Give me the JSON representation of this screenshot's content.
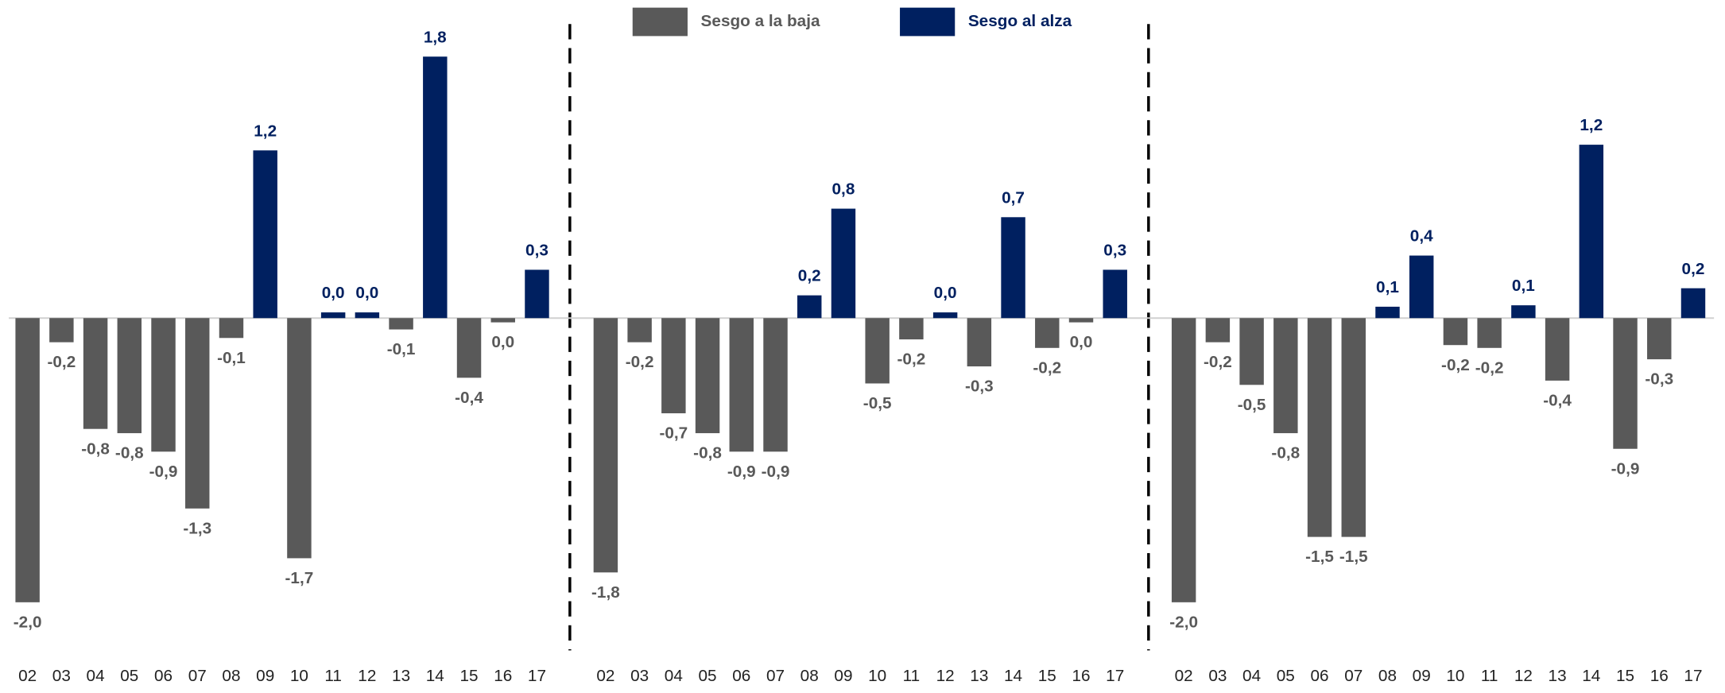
{
  "legend": [
    {
      "name": "Sesgo a la baja",
      "color": "#595959"
    },
    {
      "name": "Sesgo al alza",
      "color": "#002060"
    }
  ],
  "chart_data": [
    {
      "type": "bar",
      "ylim": [
        -2.4,
        2.2
      ],
      "categories": [
        "02",
        "03",
        "04",
        "05",
        "06",
        "07",
        "08",
        "09",
        "10",
        "11",
        "12",
        "13",
        "14",
        "15",
        "16",
        "17"
      ],
      "values": [
        -2.0,
        -0.17,
        -0.78,
        -0.81,
        -0.94,
        -1.34,
        -0.14,
        1.18,
        -1.69,
        0.04,
        0.04,
        -0.08,
        1.84,
        -0.42,
        -0.03,
        0.34
      ],
      "value_labels": [
        "-2,0",
        "-0,2",
        "-0,8",
        "-0,8",
        "-0,9",
        "-1,3",
        "-0,1",
        "1,2",
        "-1,7",
        "0,0",
        "0,0",
        "-0,1",
        "1,8",
        "-0,4",
        "0,0",
        "0,3"
      ]
    },
    {
      "type": "bar",
      "ylim": [
        -2.4,
        2.2
      ],
      "categories": [
        "02",
        "03",
        "04",
        "05",
        "06",
        "07",
        "08",
        "09",
        "10",
        "11",
        "12",
        "13",
        "14",
        "15",
        "16",
        "17"
      ],
      "values": [
        -1.79,
        -0.17,
        -0.67,
        -0.81,
        -0.94,
        -0.94,
        0.16,
        0.77,
        -0.46,
        -0.15,
        0.04,
        -0.34,
        0.71,
        -0.21,
        -0.03,
        0.34
      ],
      "value_labels": [
        "-1,8",
        "-0,2",
        "-0,7",
        "-0,8",
        "-0,9",
        "-0,9",
        "0,2",
        "0,8",
        "-0,5",
        "-0,2",
        "0,0",
        "-0,3",
        "0,7",
        "-0,2",
        "0,0",
        "0,3"
      ]
    },
    {
      "type": "bar",
      "ylim": [
        -2.4,
        2.2
      ],
      "categories": [
        "02",
        "03",
        "04",
        "05",
        "06",
        "07",
        "08",
        "09",
        "10",
        "11",
        "12",
        "13",
        "14",
        "15",
        "16",
        "17"
      ],
      "values": [
        -2.0,
        -0.17,
        -0.47,
        -0.81,
        -1.54,
        -1.54,
        0.08,
        0.44,
        -0.19,
        -0.21,
        0.09,
        -0.44,
        1.22,
        -0.92,
        -0.29,
        0.21
      ],
      "value_labels": [
        "-2,0",
        "-0,2",
        "-0,5",
        "-0,8",
        "-1,5",
        "-1,5",
        "0,1",
        "0,4",
        "-0,2",
        "-0,2",
        "0,1",
        "-0,4",
        "1,2",
        "-0,9",
        "-0,3",
        "0,2"
      ]
    }
  ]
}
